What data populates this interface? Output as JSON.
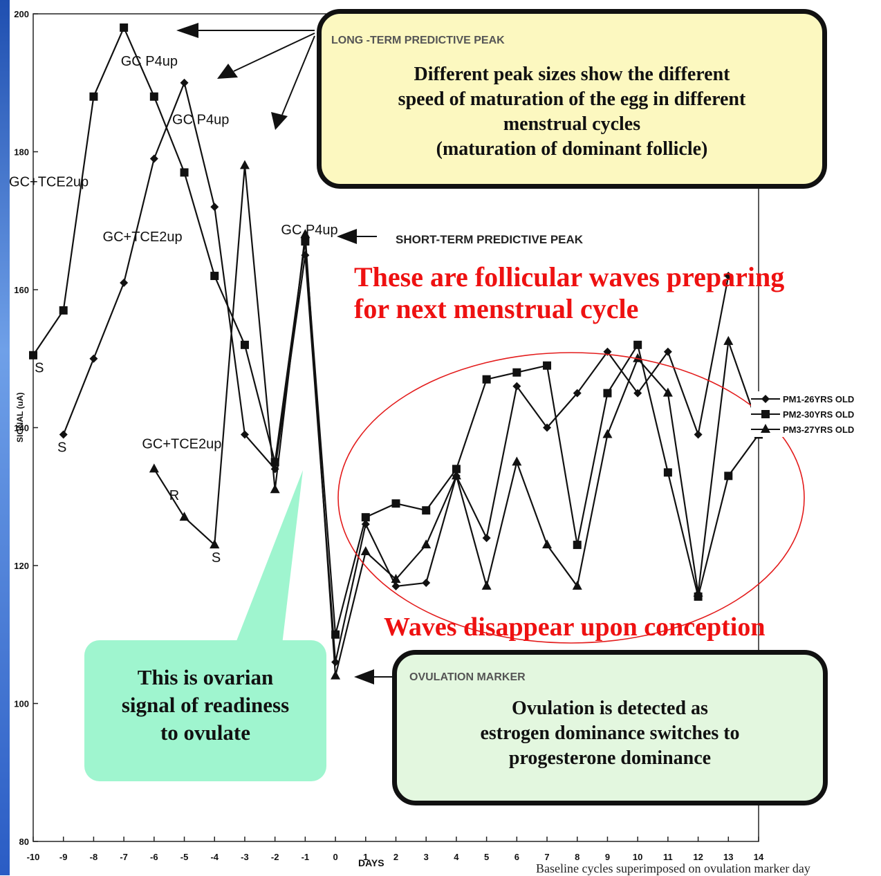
{
  "chart_data": {
    "type": "line",
    "xlabel": "DAYS",
    "ylabel": "SIGNAL (uA)",
    "xlim": [
      -10,
      14
    ],
    "ylim": [
      80,
      200
    ],
    "x_ticks": [
      "-10",
      "-9",
      "-8",
      "-7",
      "-6",
      "-5",
      "-4",
      "-3",
      "-2",
      "-1",
      "0",
      "1",
      "2",
      "3",
      "4",
      "5",
      "6",
      "7",
      "8",
      "9",
      "10",
      "11",
      "12",
      "13",
      "14"
    ],
    "y_ticks": [
      "80",
      "100",
      "120",
      "140",
      "160",
      "180",
      "200"
    ],
    "legend_position": "right",
    "series": [
      {
        "name": "PM1-26YRS OLD",
        "marker": "diamond",
        "segments": [
          [
            [
              -9,
              139
            ],
            [
              -8,
              150
            ],
            [
              -7,
              161
            ],
            [
              -6,
              179
            ],
            [
              -5,
              190
            ],
            [
              -4,
              172
            ],
            [
              -3,
              139
            ],
            [
              -2,
              134
            ],
            [
              -1,
              165
            ],
            [
              0,
              106
            ],
            [
              1,
              126
            ],
            [
              2,
              117
            ],
            [
              3,
              117.5
            ],
            [
              4,
              133
            ],
            [
              5,
              124
            ],
            [
              6,
              146
            ],
            [
              7,
              140
            ],
            [
              8,
              145
            ],
            [
              9,
              151
            ],
            [
              10,
              145
            ],
            [
              11,
              151
            ],
            [
              12,
              139
            ],
            [
              13,
              162
            ]
          ]
        ]
      },
      {
        "name": "PM2-30YRS OLD",
        "marker": "square",
        "segments": [
          [
            [
              -10,
              150.5
            ],
            [
              -9,
              157
            ],
            [
              -8,
              188
            ],
            [
              -7,
              198
            ],
            [
              -6,
              188
            ],
            [
              -5,
              177
            ],
            [
              -4,
              162
            ],
            [
              -3,
              152
            ],
            [
              -2,
              135
            ],
            [
              -1,
              167
            ],
            [
              0,
              110
            ],
            [
              1,
              127
            ],
            [
              2,
              129
            ],
            [
              3,
              128
            ],
            [
              4,
              134
            ],
            [
              5,
              147
            ],
            [
              6,
              148
            ],
            [
              7,
              149
            ],
            [
              8,
              123
            ],
            [
              9,
              145
            ],
            [
              10,
              152
            ],
            [
              11,
              133.5
            ],
            [
              12,
              115.5
            ],
            [
              13,
              133
            ],
            [
              14,
              139
            ]
          ]
        ]
      },
      {
        "name": "PM3-27YRS OLD",
        "marker": "triangle",
        "segments": [
          [
            [
              -6,
              134
            ],
            [
              -5,
              127
            ],
            [
              -4,
              123
            ]
          ],
          [
            [
              -4,
              123
            ],
            [
              -3,
              178
            ],
            [
              -2,
              131
            ],
            [
              -1,
              168
            ],
            [
              0,
              104
            ],
            [
              1,
              122
            ],
            [
              2,
              118
            ],
            [
              3,
              123
            ],
            [
              4,
              133
            ],
            [
              5,
              117
            ],
            [
              6,
              135
            ],
            [
              7,
              123
            ],
            [
              8,
              117
            ],
            [
              9,
              139
            ],
            [
              10,
              150
            ],
            [
              11,
              145
            ],
            [
              12,
              116
            ],
            [
              13,
              152.5
            ],
            [
              14,
              140
            ]
          ]
        ]
      }
    ],
    "point_labels": [
      {
        "text": "GC P4up",
        "x": -7.1,
        "y": 192.5
      },
      {
        "text": "GC P4up",
        "x": -5.4,
        "y": 184
      },
      {
        "text": "GC P4up",
        "x": -1.8,
        "y": 168
      },
      {
        "text": "GC+TCE2up",
        "x": -10.8,
        "y": 175
      },
      {
        "text": "GC+TCE2up",
        "x": -7.7,
        "y": 167
      },
      {
        "text": "GC+TCE2up",
        "x": -6.4,
        "y": 137
      },
      {
        "text": "S",
        "x": -9.95,
        "y": 148
      },
      {
        "text": "S",
        "x": -9.2,
        "y": 136.5
      },
      {
        "text": "S",
        "x": -4.1,
        "y": 120.5
      },
      {
        "text": "R",
        "x": -5.5,
        "y": 129.5
      }
    ],
    "annotations": {
      "long_term_header": "LONG -TERM PREDICTIVE PEAK",
      "long_term_body": [
        "Different peak sizes show the different",
        "speed of maturation of the egg in different",
        "menstrual cycles",
        "(maturation of dominant follicle)"
      ],
      "short_term": "SHORT-TERM PREDICTIVE PEAK",
      "ovulation_header": "OVULATION MARKER",
      "ovulation_body": [
        "Ovulation is detected as",
        "estrogen dominance switches to",
        "progesterone dominance"
      ],
      "readiness": [
        "This is ovarian",
        "signal of readiness",
        "to ovulate"
      ],
      "follicular": [
        "These are follicular waves preparing",
        "for next menstrual cycle"
      ],
      "conception": "Waves disappear upon conception",
      "footnote": "Baseline cycles superimposed on ovulation marker day"
    }
  },
  "colors": {
    "lines": "#111111",
    "ellipse": "#e31b1b",
    "red_text": "#ee1111",
    "long_box_fill": "#fcf8c0",
    "ovulation_box_fill": "#e3f7df",
    "callout_fill": "#9ff5cf"
  }
}
